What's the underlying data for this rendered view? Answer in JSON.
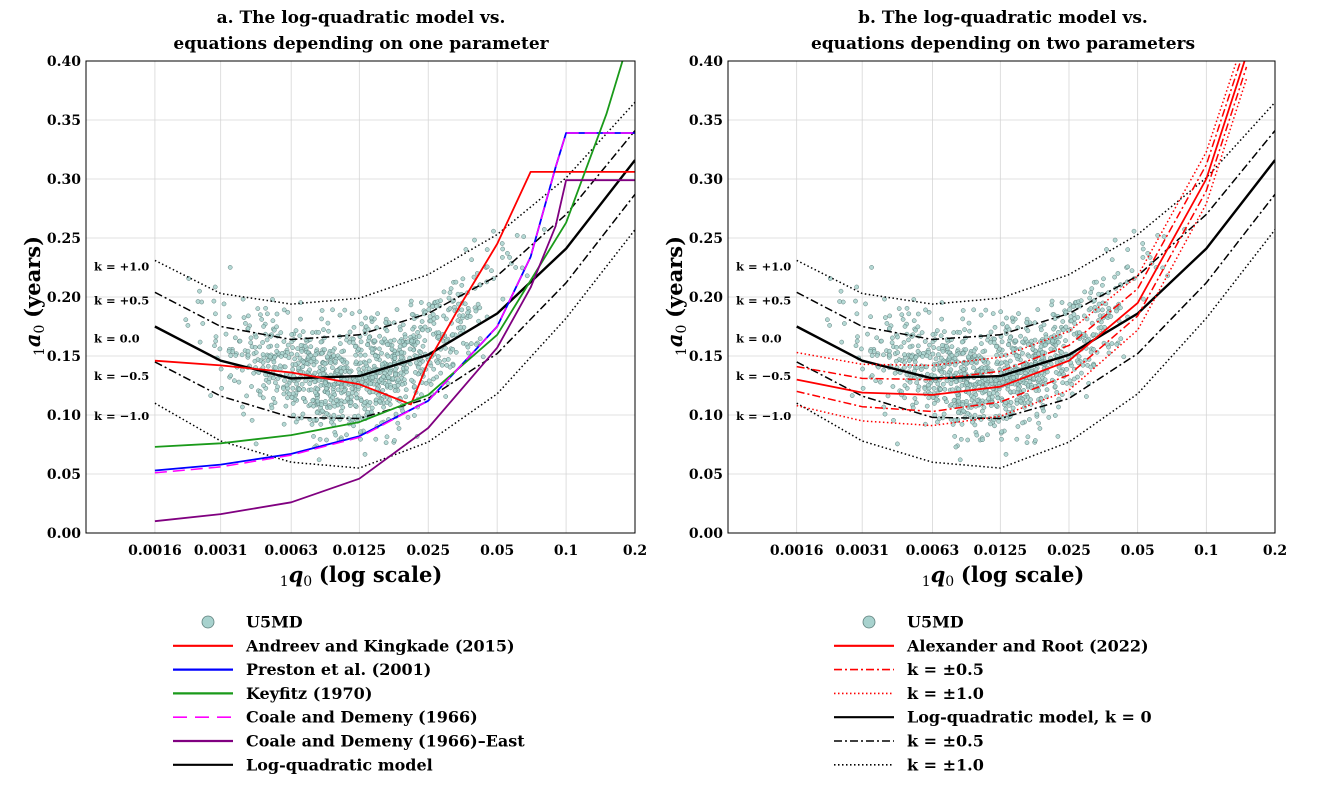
{
  "chart_data": [
    {
      "type": "line",
      "title_line1": "a. The log-quadratic model vs.",
      "title_line2": "equations depending on one parameter",
      "xlabel_sym": "q",
      "xlabel_text": "(log scale)",
      "ylabel_sym": "a",
      "ylabel_text": "(years)",
      "x_scale": "log",
      "xlim": [
        0.0008,
        0.2
      ],
      "ylim": [
        0,
        0.4
      ],
      "x_ticks": [
        0.0016,
        0.0031,
        0.0063,
        0.0125,
        0.025,
        0.05,
        0.1,
        0.2
      ],
      "x_tick_labels": [
        "0.0016",
        "0.0031",
        "0.0063",
        "0.0125",
        "0.025",
        "0.05",
        "0.1",
        "0.2"
      ],
      "y_ticks": [
        0,
        0.05,
        0.1,
        0.15,
        0.2,
        0.25,
        0.3,
        0.35,
        0.4
      ],
      "y_tick_labels": [
        "0.00",
        "0.05",
        "0.10",
        "0.15",
        "0.20",
        "0.25",
        "0.30",
        "0.35",
        "0.40"
      ],
      "grid": true,
      "k_labels": [
        "k = +1.0",
        "k = +0.5",
        "k = 0.0",
        "k = −0.5",
        "k = −1.0"
      ],
      "k_label_values": [
        0.226,
        0.197,
        0.165,
        0.133,
        0.099
      ],
      "legend": [
        {
          "label": "U5MD",
          "style": "marker",
          "color": "#a8d2ce"
        },
        {
          "label": "Andreev and Kingkade (2015)",
          "style": "solid",
          "color": "#ff0000"
        },
        {
          "label": "Preston et al. (2001)",
          "style": "solid",
          "color": "#0000ff"
        },
        {
          "label": "Keyfitz (1970)",
          "style": "solid",
          "color": "#1a9a1a"
        },
        {
          "label": "Coale and Demeny (1966)",
          "style": "dashed",
          "color": "#ff00ff"
        },
        {
          "label": "Coale and Demeny (1966)–East",
          "style": "solid",
          "color": "#800080"
        },
        {
          "label": "Log-quadratic model",
          "style": "solid",
          "color": "#000000"
        }
      ],
      "series": [
        {
          "key": "lq_p1",
          "x": [
            0.0016,
            0.0031,
            0.0063,
            0.0125,
            0.025,
            0.05,
            0.1,
            0.2
          ],
          "values": [
            0.231,
            0.203,
            0.194,
            0.199,
            0.219,
            0.253,
            0.301,
            0.365
          ],
          "color": "#000000",
          "dash": "dotted"
        },
        {
          "key": "lq_p05",
          "x": [
            0.0016,
            0.0031,
            0.0063,
            0.0125,
            0.025,
            0.05,
            0.1,
            0.2
          ],
          "values": [
            0.204,
            0.175,
            0.164,
            0.168,
            0.186,
            0.218,
            0.27,
            0.341
          ],
          "color": "#000000",
          "dash": "dashdot"
        },
        {
          "key": "lq_0",
          "x": [
            0.0016,
            0.0031,
            0.0063,
            0.0125,
            0.025,
            0.05,
            0.1,
            0.2
          ],
          "values": [
            0.175,
            0.146,
            0.131,
            0.133,
            0.151,
            0.186,
            0.241,
            0.316
          ],
          "color": "#000000",
          "dash": "solid"
        },
        {
          "key": "lq_m05",
          "x": [
            0.0016,
            0.0031,
            0.0063,
            0.0125,
            0.025,
            0.05,
            0.1,
            0.2
          ],
          "values": [
            0.145,
            0.116,
            0.098,
            0.097,
            0.114,
            0.152,
            0.212,
            0.287
          ],
          "color": "#000000",
          "dash": "dashdot"
        },
        {
          "key": "lq_m1",
          "x": [
            0.0016,
            0.0031,
            0.0063,
            0.0125,
            0.025,
            0.05,
            0.1,
            0.2
          ],
          "values": [
            0.11,
            0.078,
            0.06,
            0.055,
            0.077,
            0.118,
            0.182,
            0.257
          ],
          "color": "#000000",
          "dash": "dotted"
        },
        {
          "key": "ak",
          "x": [
            0.0016,
            0.0031,
            0.0063,
            0.0125,
            0.017,
            0.021,
            0.025,
            0.035,
            0.05,
            0.07,
            0.1,
            0.2
          ],
          "values": [
            0.146,
            0.142,
            0.136,
            0.126,
            0.116,
            0.109,
            0.145,
            0.195,
            0.245,
            0.306,
            0.306,
            0.306
          ],
          "color": "#ff0000",
          "dash": "solid"
        },
        {
          "key": "preston",
          "x": [
            0.0016,
            0.0031,
            0.0063,
            0.0125,
            0.025,
            0.05,
            0.07,
            0.09,
            0.1,
            0.2
          ],
          "values": [
            0.053,
            0.058,
            0.067,
            0.082,
            0.112,
            0.175,
            0.234,
            0.31,
            0.339,
            0.339
          ],
          "color": "#0000ff",
          "dash": "solid"
        },
        {
          "key": "keyfitz",
          "x": [
            0.0016,
            0.0031,
            0.0063,
            0.0125,
            0.025,
            0.05,
            0.1,
            0.15,
            0.2
          ],
          "values": [
            0.073,
            0.076,
            0.083,
            0.094,
            0.117,
            0.168,
            0.263,
            0.355,
            0.435
          ],
          "color": "#1a9a1a",
          "dash": "solid"
        },
        {
          "key": "cd",
          "x": [
            0.0016,
            0.0031,
            0.0063,
            0.0125,
            0.025,
            0.05,
            0.07,
            0.09,
            0.1,
            0.2
          ],
          "values": [
            0.051,
            0.056,
            0.066,
            0.081,
            0.112,
            0.175,
            0.234,
            0.31,
            0.339,
            0.339
          ],
          "color": "#ff00ff",
          "dash": "dashed"
        },
        {
          "key": "cde",
          "x": [
            0.0016,
            0.0031,
            0.0063,
            0.0125,
            0.025,
            0.05,
            0.07,
            0.09,
            0.1,
            0.2
          ],
          "values": [
            0.01,
            0.016,
            0.026,
            0.046,
            0.089,
            0.157,
            0.208,
            0.26,
            0.299,
            0.299
          ],
          "color": "#800080",
          "dash": "solid"
        }
      ]
    },
    {
      "type": "line",
      "title_line1": "b. The log-quadratic model vs.",
      "title_line2": "equations depending on two parameters",
      "xlabel_sym": "q",
      "xlabel_text": "(log scale)",
      "ylabel_sym": "a",
      "ylabel_text": "(years)",
      "x_scale": "log",
      "xlim": [
        0.0008,
        0.2
      ],
      "ylim": [
        0,
        0.4
      ],
      "x_ticks": [
        0.0016,
        0.0031,
        0.0063,
        0.0125,
        0.025,
        0.05,
        0.1,
        0.2
      ],
      "x_tick_labels": [
        "0.0016",
        "0.0031",
        "0.0063",
        "0.0125",
        "0.025",
        "0.05",
        "0.1",
        "0.2"
      ],
      "y_ticks": [
        0,
        0.05,
        0.1,
        0.15,
        0.2,
        0.25,
        0.3,
        0.35,
        0.4
      ],
      "y_tick_labels": [
        "0.00",
        "0.05",
        "0.10",
        "0.15",
        "0.20",
        "0.25",
        "0.30",
        "0.35",
        "0.40"
      ],
      "grid": true,
      "k_labels": [
        "k = +1.0",
        "k = +0.5",
        "k = 0.0",
        "k = −0.5",
        "k = −1.0"
      ],
      "k_label_values": [
        0.226,
        0.197,
        0.165,
        0.133,
        0.099
      ],
      "legend": [
        {
          "label": "U5MD",
          "style": "marker",
          "color": "#a8d2ce"
        },
        {
          "label": "Alexander and Root (2022)",
          "style": "solid",
          "color": "#ff0000"
        },
        {
          "label": "k = ±0.5",
          "style": "dashdot",
          "color": "#ff0000"
        },
        {
          "label": "k = ±1.0",
          "style": "dotted",
          "color": "#ff0000"
        },
        {
          "label": "Log-quadratic model, k = 0",
          "style": "solid",
          "color": "#000000"
        },
        {
          "label": "k = ±0.5",
          "style": "dashdot",
          "color": "#000000"
        },
        {
          "label": "k = ±1.0",
          "style": "dotted",
          "color": "#000000"
        }
      ],
      "series": [
        {
          "key": "lq_p1",
          "x": [
            0.0016,
            0.0031,
            0.0063,
            0.0125,
            0.025,
            0.05,
            0.1,
            0.2
          ],
          "values": [
            0.231,
            0.203,
            0.194,
            0.199,
            0.219,
            0.253,
            0.301,
            0.365
          ],
          "color": "#000000",
          "dash": "dotted"
        },
        {
          "key": "lq_p05",
          "x": [
            0.0016,
            0.0031,
            0.0063,
            0.0125,
            0.025,
            0.05,
            0.1,
            0.2
          ],
          "values": [
            0.204,
            0.175,
            0.164,
            0.168,
            0.186,
            0.218,
            0.27,
            0.341
          ],
          "color": "#000000",
          "dash": "dashdot"
        },
        {
          "key": "lq_0",
          "x": [
            0.0016,
            0.0031,
            0.0063,
            0.0125,
            0.025,
            0.05,
            0.1,
            0.2
          ],
          "values": [
            0.175,
            0.146,
            0.131,
            0.133,
            0.151,
            0.186,
            0.241,
            0.316
          ],
          "color": "#000000",
          "dash": "solid"
        },
        {
          "key": "lq_m05",
          "x": [
            0.0016,
            0.0031,
            0.0063,
            0.0125,
            0.025,
            0.05,
            0.1,
            0.2
          ],
          "values": [
            0.145,
            0.116,
            0.098,
            0.097,
            0.114,
            0.152,
            0.212,
            0.287
          ],
          "color": "#000000",
          "dash": "dashdot"
        },
        {
          "key": "lq_m1",
          "x": [
            0.0016,
            0.0031,
            0.0063,
            0.0125,
            0.025,
            0.05,
            0.1,
            0.2
          ],
          "values": [
            0.11,
            0.078,
            0.06,
            0.055,
            0.077,
            0.118,
            0.182,
            0.257
          ],
          "color": "#000000",
          "dash": "dotted"
        },
        {
          "key": "ar_0",
          "x": [
            0.0016,
            0.0031,
            0.0063,
            0.0125,
            0.025,
            0.05,
            0.1,
            0.15
          ],
          "values": [
            0.13,
            0.119,
            0.117,
            0.124,
            0.146,
            0.195,
            0.3,
            0.405
          ],
          "color": "#ff0000",
          "dash": "solid"
        },
        {
          "key": "ar_p05",
          "x": [
            0.0016,
            0.0031,
            0.0063,
            0.0125,
            0.025,
            0.05,
            0.1,
            0.15
          ],
          "values": [
            0.141,
            0.131,
            0.13,
            0.137,
            0.159,
            0.207,
            0.312,
            0.415
          ],
          "color": "#ff0000",
          "dash": "dashdot"
        },
        {
          "key": "ar_m05",
          "x": [
            0.0016,
            0.0031,
            0.0063,
            0.0125,
            0.025,
            0.05,
            0.1,
            0.15
          ],
          "values": [
            0.12,
            0.107,
            0.103,
            0.111,
            0.134,
            0.184,
            0.29,
            0.395
          ],
          "color": "#ff0000",
          "dash": "dashdot"
        },
        {
          "key": "ar_p1",
          "x": [
            0.0016,
            0.0031,
            0.0063,
            0.0125,
            0.025,
            0.05,
            0.1,
            0.15
          ],
          "values": [
            0.153,
            0.143,
            0.142,
            0.149,
            0.171,
            0.218,
            0.323,
            0.425
          ],
          "color": "#ff0000",
          "dash": "dotted"
        },
        {
          "key": "ar_m1",
          "x": [
            0.0016,
            0.0031,
            0.0063,
            0.0125,
            0.025,
            0.05,
            0.1,
            0.15
          ],
          "values": [
            0.108,
            0.095,
            0.091,
            0.099,
            0.121,
            0.172,
            0.279,
            0.385
          ],
          "color": "#ff0000",
          "dash": "dotted"
        }
      ]
    }
  ]
}
